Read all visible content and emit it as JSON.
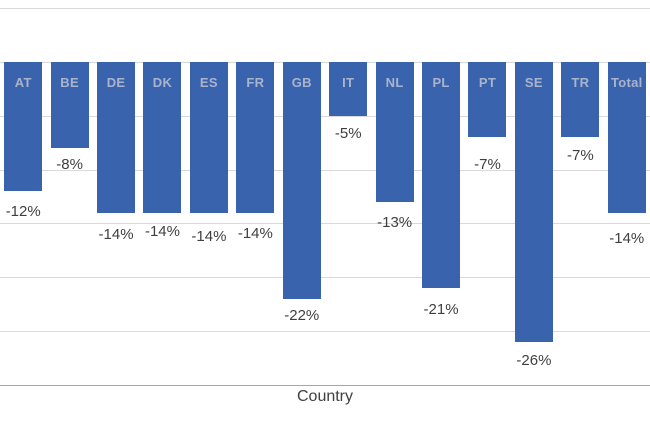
{
  "chart_data": {
    "type": "bar",
    "title": "",
    "xlabel": "Country",
    "ylabel": "",
    "categories": [
      "AT",
      "BE",
      "DE",
      "DK",
      "ES",
      "FR",
      "GB",
      "IT",
      "NL",
      "PL",
      "PT",
      "SE",
      "TR",
      "Total"
    ],
    "values": [
      -12,
      -8,
      -14,
      -14,
      -14,
      -14,
      -22,
      -5,
      -13,
      -21,
      -7,
      -26,
      -7,
      -14
    ],
    "value_labels": [
      "-12%",
      "-8%",
      "-14%",
      "-14%",
      "-14%",
      "-14%",
      "-22%",
      "-5%",
      "-13%",
      "-21%",
      "-7%",
      "-26%",
      "-7%",
      "-14%"
    ],
    "ylim": [
      -30,
      5
    ],
    "gridline_step": 5,
    "grid": true,
    "legend_position": "none",
    "colors": {
      "bar": "#3a63ae",
      "bar_category_label": "#a9b4cc",
      "value_label": "#3f3f3f",
      "gridline": "#d9d9d9",
      "bottom_border": "#a6a6a6",
      "axis_title": "#3f3f3f",
      "background": "#ffffff"
    }
  }
}
